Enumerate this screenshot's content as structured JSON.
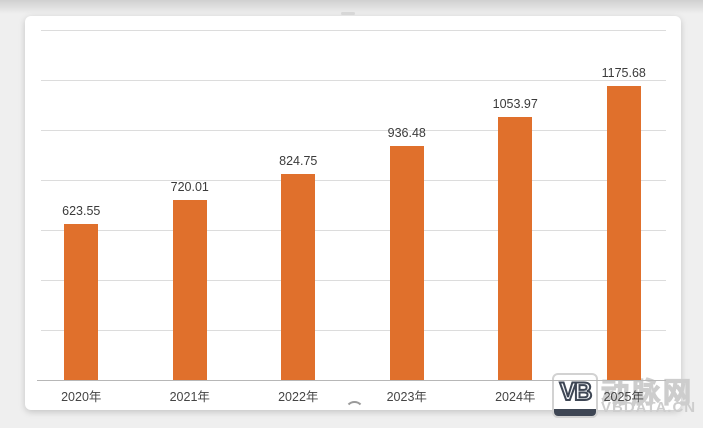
{
  "chart_data": {
    "type": "bar",
    "title": "",
    "xlabel": "",
    "ylabel": "",
    "categories": [
      "2020年",
      "2021年",
      "2022年",
      "2023年",
      "2024年",
      "2025年"
    ],
    "values": [
      623.55,
      720.01,
      824.75,
      936.48,
      1053.97,
      1175.68
    ],
    "value_labels": [
      "623.55",
      "720.01",
      "824.75",
      "936.48",
      "1053.97",
      "1175.68"
    ],
    "ylim": [
      0,
      1400
    ],
    "gridline_step": 200,
    "grid": true,
    "legend_position": "none",
    "bar_color": "#E0702C"
  },
  "watermark": {
    "logo_letters": "VB",
    "site_name": "动脉网",
    "domain": "VBDATA.CN"
  }
}
